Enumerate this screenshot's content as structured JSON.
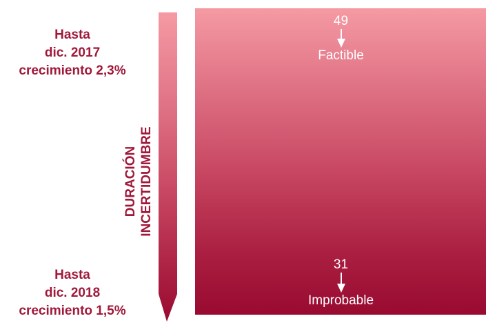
{
  "left_labels": {
    "top": [
      "Hasta",
      "dic. 2017",
      "crecimiento 2,3%"
    ],
    "bottom": [
      "Hasta",
      "dic. 2018",
      "crecimiento 1,5%"
    ]
  },
  "axis_title": [
    "DURACIÓN",
    "INCERTIDUMBRE"
  ],
  "markers": {
    "top": {
      "value": "49",
      "label": "Factible"
    },
    "bottom": {
      "value": "31",
      "label": "Improbable"
    }
  },
  "colors": {
    "accent": "#a0193a",
    "gradient_light": "#f59aa3",
    "gradient_dark": "#990a31",
    "marker_text": "#ffffff"
  }
}
